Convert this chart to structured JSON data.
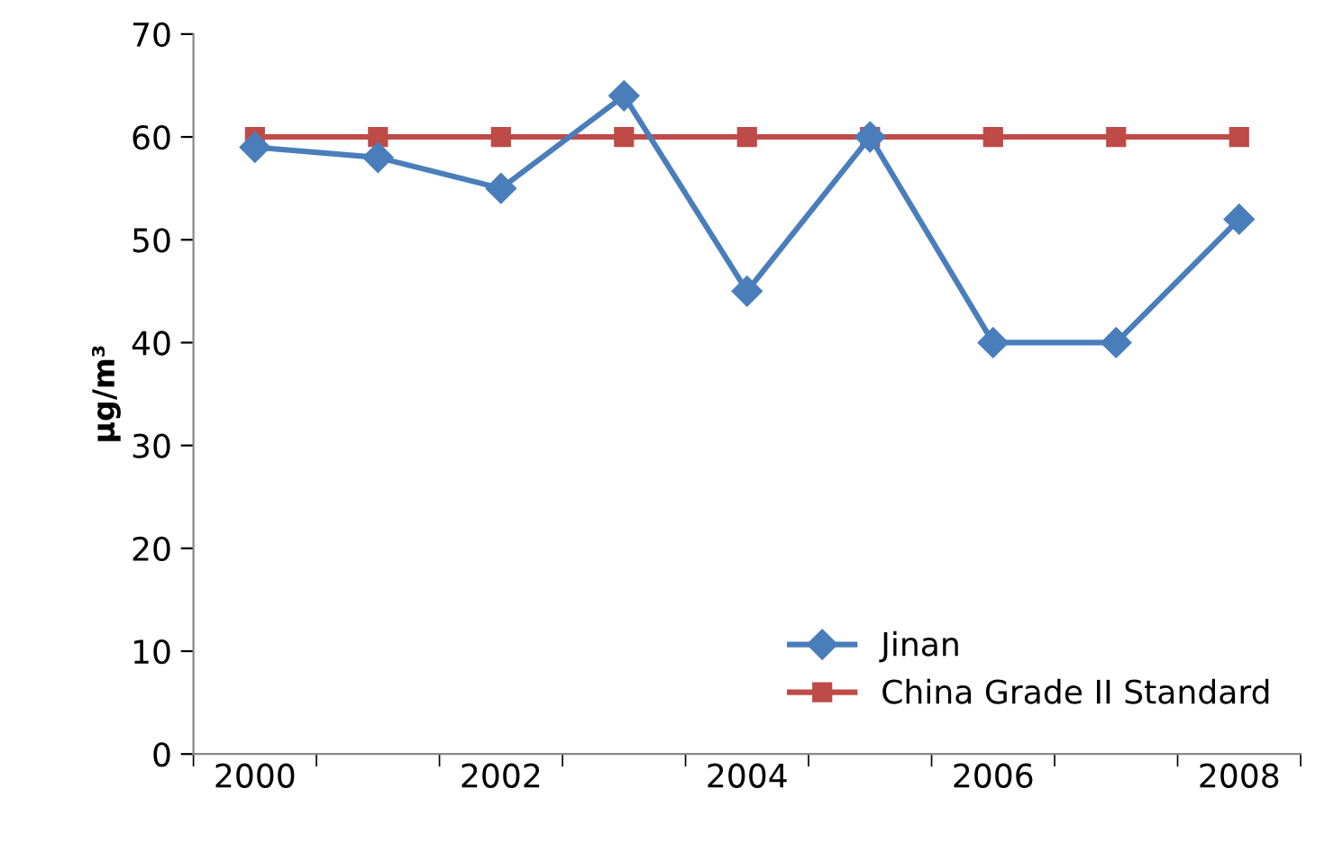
{
  "chart_data": {
    "type": "line",
    "ylabel": "µg/m³",
    "categories": [
      "2000",
      null,
      "2002",
      null,
      "2004",
      null,
      "2006",
      null,
      "2008"
    ],
    "series": [
      {
        "name": "Jinan",
        "color": "#4a7ebb",
        "marker": "diamond",
        "values": [
          59,
          58,
          55,
          64,
          45,
          60,
          40,
          40,
          52
        ]
      },
      {
        "name": "China Grade II Standard",
        "color": "#be4b48",
        "marker": "square",
        "values": [
          60,
          60,
          60,
          60,
          60,
          60,
          60,
          60,
          60
        ]
      }
    ],
    "ylim": [
      0,
      70
    ],
    "yticks": [
      0,
      10,
      20,
      30,
      40,
      50,
      60,
      70
    ],
    "grid": false,
    "legend": "bottom right",
    "line_style": "solid"
  }
}
